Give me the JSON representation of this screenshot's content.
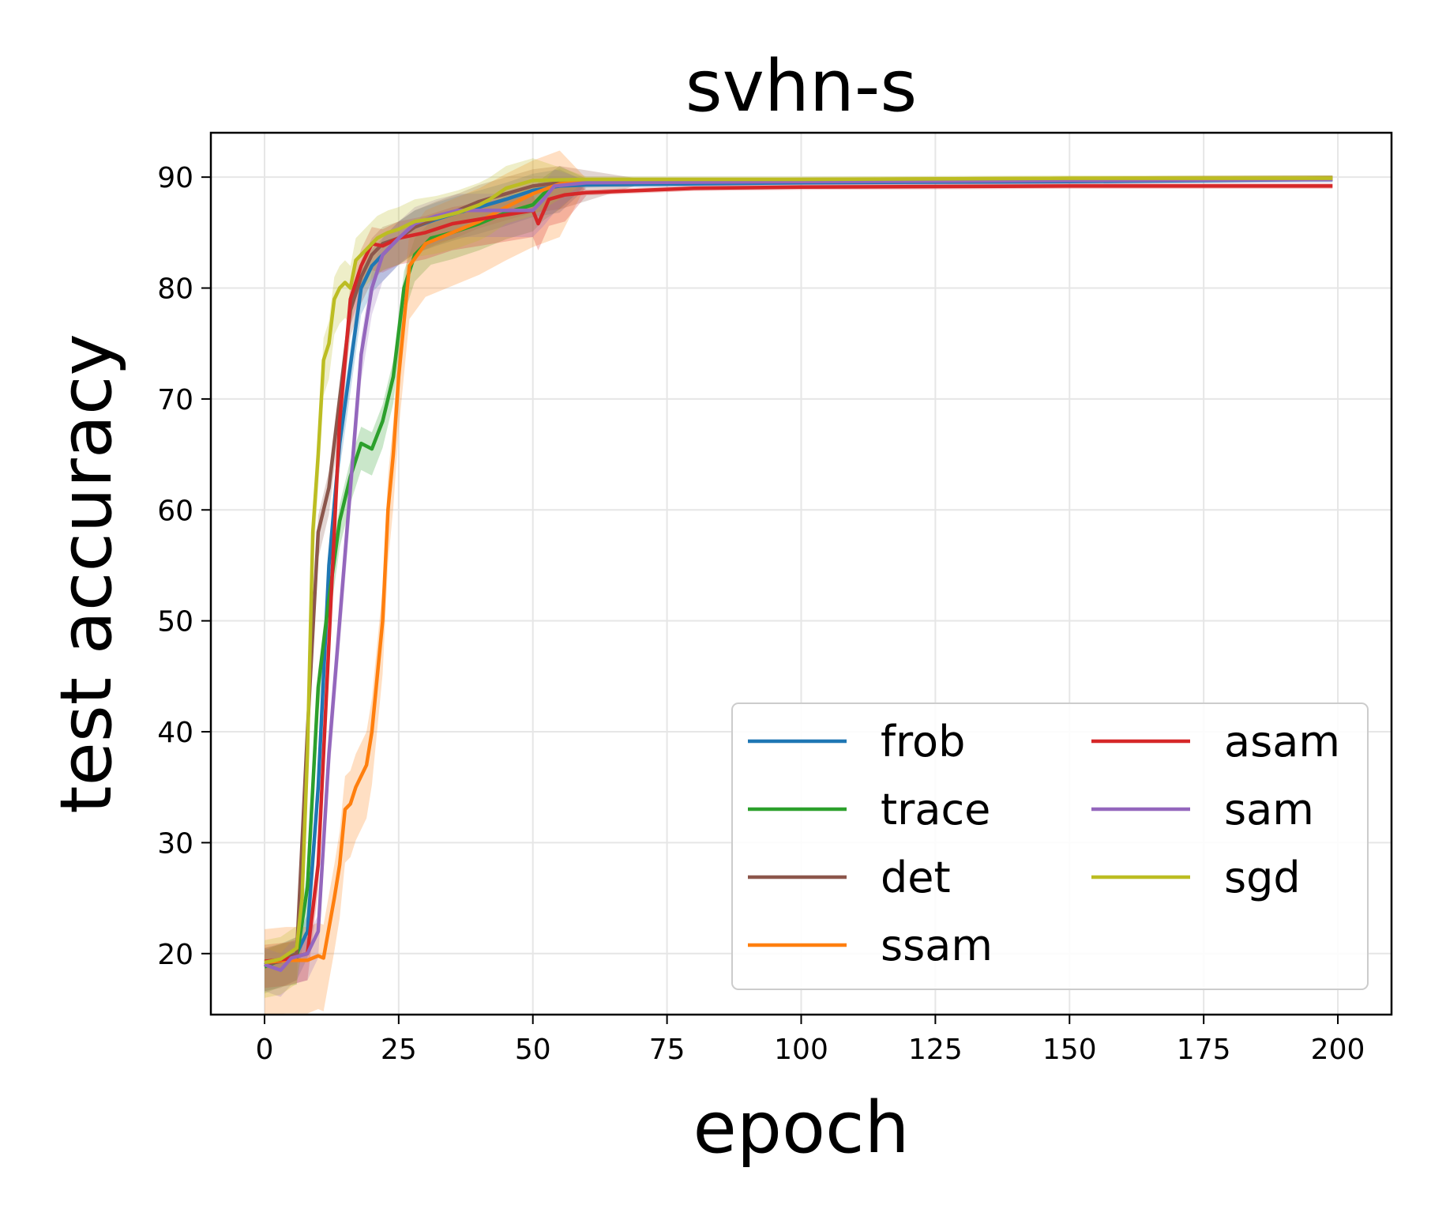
{
  "chart_data": {
    "type": "line",
    "title": "svhn-s",
    "xlabel": "epoch",
    "ylabel": "test accuracy",
    "xlim": [
      -10,
      210
    ],
    "ylim": [
      14.5,
      94
    ],
    "xticks": [
      0,
      25,
      50,
      75,
      100,
      125,
      150,
      175,
      200
    ],
    "yticks": [
      20,
      30,
      40,
      50,
      60,
      70,
      80,
      90
    ],
    "grid": true,
    "legend_position": "lower-right",
    "legend_columns": 2,
    "series": [
      {
        "name": "frob",
        "color": "#1f77b4",
        "points": [
          [
            0,
            19.0
          ],
          [
            3,
            19.4
          ],
          [
            6,
            20.0
          ],
          [
            8,
            22.0
          ],
          [
            10,
            35.0
          ],
          [
            12,
            55.0
          ],
          [
            14,
            66.0
          ],
          [
            16,
            73.0
          ],
          [
            18,
            80.0
          ],
          [
            20,
            82.0
          ],
          [
            22,
            83.0
          ],
          [
            25,
            84.5
          ],
          [
            28,
            85.5
          ],
          [
            32,
            86.2
          ],
          [
            36,
            86.8
          ],
          [
            40,
            87.3
          ],
          [
            45,
            88.0
          ],
          [
            50,
            88.8
          ],
          [
            55,
            89.2
          ],
          [
            60,
            89.3
          ],
          [
            80,
            89.4
          ],
          [
            100,
            89.5
          ],
          [
            150,
            89.6
          ],
          [
            199,
            89.8
          ]
        ],
        "band": 1.5
      },
      {
        "name": "trace",
        "color": "#2ca02c",
        "points": [
          [
            0,
            18.8
          ],
          [
            3,
            19.4
          ],
          [
            6,
            19.6
          ],
          [
            8,
            26.0
          ],
          [
            10,
            44.0
          ],
          [
            12,
            52.0
          ],
          [
            14,
            59.0
          ],
          [
            16,
            63.0
          ],
          [
            18,
            66.0
          ],
          [
            20,
            65.5
          ],
          [
            22,
            68.0
          ],
          [
            24,
            72.0
          ],
          [
            26,
            80.0
          ],
          [
            28,
            83.0
          ],
          [
            31,
            84.5
          ],
          [
            35,
            85.0
          ],
          [
            40,
            85.8
          ],
          [
            45,
            86.8
          ],
          [
            50,
            87.5
          ],
          [
            52,
            88.5
          ],
          [
            55,
            89.5
          ],
          [
            60,
            89.6
          ],
          [
            100,
            89.7
          ],
          [
            150,
            89.8
          ],
          [
            199,
            89.9
          ]
        ],
        "band": 1.5
      },
      {
        "name": "det",
        "color": "#8c564b",
        "points": [
          [
            0,
            19.0
          ],
          [
            3,
            19.3
          ],
          [
            6,
            20.0
          ],
          [
            8,
            40.0
          ],
          [
            10,
            58.0
          ],
          [
            12,
            62.0
          ],
          [
            14,
            70.0
          ],
          [
            16,
            78.0
          ],
          [
            18,
            81.0
          ],
          [
            20,
            83.0
          ],
          [
            22,
            84.0
          ],
          [
            25,
            84.5
          ],
          [
            28,
            85.5
          ],
          [
            32,
            86.3
          ],
          [
            36,
            87.0
          ],
          [
            40,
            87.8
          ],
          [
            45,
            88.5
          ],
          [
            50,
            89.2
          ],
          [
            55,
            89.5
          ],
          [
            70,
            89.6
          ],
          [
            100,
            89.7
          ],
          [
            150,
            89.8
          ],
          [
            199,
            89.9
          ]
        ],
        "band": 1.5
      },
      {
        "name": "ssam",
        "color": "#ff7f0e",
        "points": [
          [
            0,
            19.2
          ],
          [
            4,
            19.4
          ],
          [
            8,
            19.4
          ],
          [
            10,
            19.8
          ],
          [
            11,
            19.6
          ],
          [
            13,
            25.0
          ],
          [
            14,
            28.0
          ],
          [
            15,
            33.0
          ],
          [
            16,
            33.5
          ],
          [
            17,
            35.0
          ],
          [
            19,
            37.0
          ],
          [
            20,
            40.0
          ],
          [
            22,
            50.0
          ],
          [
            23,
            60.0
          ],
          [
            24,
            65.0
          ],
          [
            25,
            72.0
          ],
          [
            27,
            82.0
          ],
          [
            30,
            84.0
          ],
          [
            35,
            85.0
          ],
          [
            40,
            86.0
          ],
          [
            45,
            87.3
          ],
          [
            50,
            88.5
          ],
          [
            55,
            89.4
          ],
          [
            60,
            89.6
          ],
          [
            100,
            89.7
          ],
          [
            150,
            89.8
          ],
          [
            199,
            89.9
          ]
        ],
        "band": 3.0
      },
      {
        "name": "asam",
        "color": "#d62728",
        "points": [
          [
            0,
            19.3
          ],
          [
            4,
            19.5
          ],
          [
            8,
            20.0
          ],
          [
            10,
            28.0
          ],
          [
            12,
            48.0
          ],
          [
            14,
            68.0
          ],
          [
            16,
            79.0
          ],
          [
            18,
            82.0
          ],
          [
            20,
            84.0
          ],
          [
            22,
            83.8
          ],
          [
            25,
            84.5
          ],
          [
            30,
            85.0
          ],
          [
            35,
            85.8
          ],
          [
            40,
            86.2
          ],
          [
            45,
            86.6
          ],
          [
            50,
            87.0
          ],
          [
            51,
            85.8
          ],
          [
            53,
            88.0
          ],
          [
            56,
            88.4
          ],
          [
            60,
            88.6
          ],
          [
            70,
            88.8
          ],
          [
            80,
            89.0
          ],
          [
            100,
            89.1
          ],
          [
            150,
            89.2
          ],
          [
            199,
            89.2
          ]
        ],
        "band": 1.5
      },
      {
        "name": "sam",
        "color": "#9467bd",
        "points": [
          [
            0,
            19.0
          ],
          [
            3,
            18.5
          ],
          [
            5,
            19.6
          ],
          [
            8,
            20.0
          ],
          [
            10,
            22.0
          ],
          [
            12,
            38.0
          ],
          [
            14,
            50.0
          ],
          [
            16,
            62.0
          ],
          [
            18,
            74.0
          ],
          [
            20,
            80.0
          ],
          [
            22,
            83.0
          ],
          [
            25,
            84.5
          ],
          [
            28,
            85.8
          ],
          [
            32,
            86.5
          ],
          [
            36,
            87.0
          ],
          [
            40,
            87.0
          ],
          [
            45,
            87.0
          ],
          [
            50,
            87.0
          ],
          [
            52,
            88.0
          ],
          [
            54,
            89.2
          ],
          [
            60,
            89.5
          ],
          [
            100,
            89.6
          ],
          [
            150,
            89.7
          ],
          [
            199,
            89.8
          ]
        ],
        "band": 1.5
      },
      {
        "name": "sgd",
        "color": "#bcbd22",
        "points": [
          [
            0,
            19.2
          ],
          [
            3,
            19.5
          ],
          [
            6,
            20.5
          ],
          [
            7,
            25.0
          ],
          [
            8,
            38.0
          ],
          [
            9,
            58.0
          ],
          [
            10,
            65.0
          ],
          [
            11,
            73.5
          ],
          [
            12,
            75.0
          ],
          [
            13,
            79.0
          ],
          [
            14,
            80.0
          ],
          [
            15,
            80.5
          ],
          [
            16,
            80.0
          ],
          [
            17,
            82.5
          ],
          [
            19,
            83.5
          ],
          [
            21,
            84.5
          ],
          [
            23,
            85.0
          ],
          [
            25,
            85.3
          ],
          [
            28,
            86.0
          ],
          [
            32,
            86.3
          ],
          [
            36,
            86.8
          ],
          [
            40,
            87.5
          ],
          [
            42,
            88.0
          ],
          [
            45,
            89.0
          ],
          [
            50,
            89.7
          ],
          [
            60,
            89.8
          ],
          [
            100,
            89.8
          ],
          [
            150,
            89.9
          ],
          [
            199,
            89.9
          ]
        ],
        "band": 2.0
      }
    ]
  }
}
